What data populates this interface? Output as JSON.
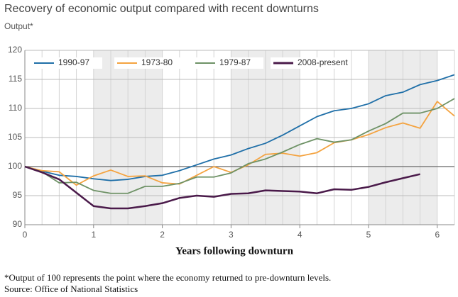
{
  "chart_data": {
    "type": "line",
    "title": "Recovery of economic output compared with recent downturns",
    "subtitle": "Output*",
    "x_label": "Years following downturn",
    "notes": [
      "*Output of 100 represents the point where the economy returned to pre-downturn levels.",
      "Source: Office of National Statistics"
    ],
    "x": [
      0,
      0.25,
      0.5,
      0.75,
      1,
      1.25,
      1.5,
      1.75,
      2,
      2.25,
      2.5,
      2.75,
      3,
      3.25,
      3.5,
      3.75,
      4,
      4.25,
      4.5,
      4.75,
      5,
      5.25,
      5.5,
      5.75,
      6,
      6.25
    ],
    "series": [
      {
        "name": "1990-97",
        "color": "#1f6fa8",
        "values": [
          100,
          99.2,
          98.5,
          98.3,
          97.9,
          97.6,
          97.8,
          98.3,
          98.5,
          99.3,
          100.3,
          101.3,
          102.0,
          103.1,
          104.0,
          105.4,
          107.0,
          108.6,
          109.6,
          110.0,
          110.8,
          112.2,
          112.8,
          114.1,
          114.8,
          115.8
        ]
      },
      {
        "name": "1973-80",
        "color": "#f4a340",
        "values": [
          100,
          99.3,
          99.1,
          96.8,
          98.4,
          99.4,
          98.3,
          98.4,
          97.2,
          97.0,
          98.5,
          100.0,
          99.0,
          100.3,
          102.1,
          102.3,
          101.8,
          102.4,
          104.1,
          104.6,
          105.5,
          106.7,
          107.5,
          106.6,
          111.2,
          108.7
        ]
      },
      {
        "name": "1979-87",
        "color": "#6e9266",
        "values": [
          100,
          99.1,
          97.2,
          97.3,
          95.9,
          95.4,
          95.4,
          96.6,
          96.6,
          97.1,
          98.2,
          98.2,
          98.9,
          100.5,
          101.3,
          102.5,
          103.8,
          104.8,
          104.2,
          104.6,
          106.1,
          107.4,
          109.2,
          109.2,
          110.0,
          111.7
        ]
      },
      {
        "name": "2008-present",
        "color": "#4a1a4a",
        "values": [
          100,
          99.0,
          97.8,
          95.5,
          93.2,
          92.8,
          92.8,
          93.2,
          93.7,
          94.6,
          95.0,
          94.8,
          95.3,
          95.4,
          95.9,
          95.8,
          95.7,
          95.4,
          96.1,
          96.0,
          96.5,
          97.3,
          98.0,
          98.7,
          null,
          null
        ]
      }
    ],
    "xlim": [
      0,
      6.25
    ],
    "xticks": [
      0,
      1,
      2,
      3,
      4,
      5,
      6
    ],
    "ylim": [
      90,
      120
    ],
    "yticks": [
      90,
      95,
      100,
      105,
      110,
      115,
      120
    ],
    "grid": true,
    "legend": "top"
  }
}
